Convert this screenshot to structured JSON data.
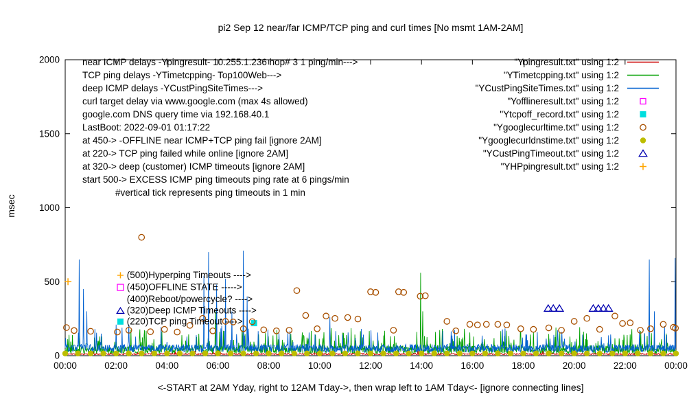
{
  "title": "pi2 Sep 12  near/far ICMP/TCP ping and curl times [No msmt 1AM-2AM]",
  "ylabel": "msec",
  "xlabel": "<-START at 2AM Yday, right to 12AM Tday->, then wrap left to 1AM Tday<- [ignore connecting lines]",
  "annotations": [
    {
      "text": "near ICMP delays -Ypingresult- 10.255.1.236 hop# 3 1 ping/min--->",
      "indent": 0
    },
    {
      "text": "TCP ping delays -YTimetcpping- Top100Web--->",
      "indent": 0
    },
    {
      "text": "deep ICMP delays -YCustPingSiteTimes--->",
      "indent": 0
    },
    {
      "text": "curl target delay via www.google.com (max 4s allowed)",
      "indent": 0
    },
    {
      "text": "google.com DNS query time via 192.168.40.1",
      "indent": 0
    },
    {
      "text": "LastBoot: 2022-09-01 01:17:22",
      "indent": 0
    },
    {
      "text": "at 450-> -OFFLINE near ICMP+TCP ping fail [ignore 2AM]",
      "indent": 0
    },
    {
      "text": "at 220-> TCP ping failed while online [ignore 2AM]",
      "indent": 0
    },
    {
      "text": "at 320-> deep (customer) ICMP timeouts [ignore 2AM]",
      "indent": 0
    },
    {
      "text": "start 500-> EXCESS ICMP ping timeouts ping rate at 6 pings/min",
      "indent": 0
    },
    {
      "text": "#vertical tick represents ping timeouts in 1 min",
      "indent": 48
    }
  ],
  "level_labels": [
    {
      "y_msec": 525,
      "marker": "plus",
      "color": "#ffa500",
      "text": "(500)Hyperping Timeouts ---->"
    },
    {
      "y_msec": 443,
      "marker": "square_open",
      "color": "#ff00ff",
      "text": "(450)OFFLINE STATE ----->"
    },
    {
      "y_msec": 361,
      "marker": "none",
      "color": "#000000",
      "text": "(400)Reboot/powercycle? ---->"
    },
    {
      "y_msec": 285,
      "marker": "triangle_open",
      "color": "#0000b0",
      "text": "(320)Deep ICMP Timeouts ---->"
    },
    {
      "y_msec": 212,
      "marker": "square_filled",
      "color": "#00dede",
      "text": "(220)TCP ping Timeout ---->"
    }
  ],
  "chart_data": {
    "type": "line",
    "xlim": [
      0,
      24
    ],
    "ylim": [
      0,
      2000
    ],
    "x_tick_hours": [
      0,
      2,
      4,
      6,
      8,
      10,
      12,
      14,
      16,
      18,
      20,
      22,
      24
    ],
    "x_tick_labels": [
      "00:00",
      "02:00",
      "04:00",
      "06:00",
      "08:00",
      "10:00",
      "12:00",
      "14:00",
      "16:00",
      "18:00",
      "20:00",
      "22:00",
      "00:00"
    ],
    "y_ticks": [
      "0",
      "500",
      "1000",
      "1500",
      "2000"
    ],
    "y_tick_values": [
      0,
      500,
      1000,
      1500,
      2000
    ],
    "legend_position": "top-right",
    "grid": false,
    "series": [
      {
        "name": "Ypingresult",
        "label": "\"Ypingresult.txt\" using 1:2",
        "kind": "noisy_line",
        "color": "#cc0000",
        "seed": 11,
        "base": 6,
        "amp": 10,
        "spike_prob": 0.015,
        "spike_amp": 25,
        "spikes": []
      },
      {
        "name": "YTimetcpping",
        "label": "\"YTimetcpping.txt\" using 1:2",
        "kind": "noisy_line",
        "color": "#00a000",
        "seed": 22,
        "base": 12,
        "amp": 55,
        "spike_prob": 0.16,
        "spike_amp": 130,
        "spikes": [
          [
            5.9,
            300
          ],
          [
            13.97,
            560
          ],
          [
            14.05,
            300
          ]
        ]
      },
      {
        "name": "YCustPingSiteTimes",
        "label": "\"YCustPingSiteTimes.txt\" using 1:2",
        "kind": "noisy_line",
        "color": "#0060d0",
        "seed": 33,
        "base": 22,
        "amp": 55,
        "spike_prob": 0.06,
        "spike_amp": 140,
        "spikes": [
          [
            0.55,
            650
          ],
          [
            0.72,
            450
          ],
          [
            0.85,
            300
          ],
          [
            2.0,
            210
          ],
          [
            5.45,
            540
          ],
          [
            5.63,
            700
          ],
          [
            5.95,
            480
          ],
          [
            6.3,
            520
          ],
          [
            6.55,
            300
          ],
          [
            7.0,
            710
          ],
          [
            7.15,
            400
          ],
          [
            10.4,
            260
          ],
          [
            22.95,
            650
          ],
          [
            23.15,
            300
          ],
          [
            23.55,
            200
          ],
          [
            23.97,
            660
          ]
        ]
      },
      {
        "name": "Yofflineresult",
        "label": "\"Yofflineresult.txt\" using 1:2",
        "kind": "scatter",
        "marker": "square_open",
        "color": "#ff00ff",
        "size": 4,
        "points": []
      },
      {
        "name": "Ytcpoff_record",
        "label": "\"Ytcpoff_record.txt\" using 1:2",
        "kind": "scatter",
        "marker": "square_filled",
        "color": "#00dede",
        "size": 4.5,
        "points": [
          [
            7.42,
            220
          ]
        ]
      },
      {
        "name": "Ygooglecurltime",
        "label": "\"Ygooglecurltime.txt\" using 1:2",
        "kind": "scatter",
        "marker": "circle_open",
        "color": "#a85000",
        "size": 4.2,
        "points": [
          [
            0.05,
            190
          ],
          [
            0.35,
            170
          ],
          [
            1.0,
            165
          ],
          [
            2.05,
            160
          ],
          [
            2.5,
            172
          ],
          [
            3.0,
            800
          ],
          [
            3.35,
            162
          ],
          [
            3.9,
            178
          ],
          [
            4.4,
            160
          ],
          [
            4.9,
            205
          ],
          [
            5.4,
            252
          ],
          [
            5.8,
            168
          ],
          [
            6.3,
            232
          ],
          [
            6.6,
            228
          ],
          [
            7.0,
            182
          ],
          [
            7.35,
            230
          ],
          [
            7.8,
            175
          ],
          [
            8.3,
            168
          ],
          [
            8.8,
            172
          ],
          [
            9.1,
            440
          ],
          [
            9.45,
            272
          ],
          [
            9.9,
            182
          ],
          [
            10.25,
            268
          ],
          [
            10.6,
            252
          ],
          [
            11.1,
            258
          ],
          [
            11.5,
            248
          ],
          [
            12.0,
            432
          ],
          [
            12.2,
            428
          ],
          [
            12.9,
            172
          ],
          [
            13.1,
            432
          ],
          [
            13.3,
            428
          ],
          [
            13.95,
            402
          ],
          [
            14.15,
            405
          ],
          [
            15.0,
            232
          ],
          [
            15.35,
            168
          ],
          [
            15.9,
            212
          ],
          [
            16.2,
            208
          ],
          [
            16.55,
            212
          ],
          [
            17.0,
            212
          ],
          [
            17.35,
            208
          ],
          [
            17.9,
            182
          ],
          [
            18.4,
            178
          ],
          [
            19.0,
            188
          ],
          [
            19.5,
            172
          ],
          [
            20.0,
            232
          ],
          [
            20.5,
            252
          ],
          [
            21.0,
            178
          ],
          [
            21.6,
            268
          ],
          [
            21.9,
            218
          ],
          [
            22.2,
            222
          ],
          [
            22.6,
            172
          ],
          [
            23.0,
            182
          ],
          [
            23.5,
            212
          ],
          [
            23.9,
            192
          ],
          [
            23.98,
            186
          ]
        ]
      },
      {
        "name": "Ygooglecurldnstime",
        "label": "\"Ygooglecurldnstime.txt\" using 1:2",
        "kind": "scatter",
        "marker": "circle_filled",
        "color": "#bdbd00",
        "size": 4.2,
        "points_rule": {
          "start": 0,
          "end": 24,
          "step": 0.5,
          "y": 15
        }
      },
      {
        "name": "YCustPingTimeout",
        "label": "\"YCustPingTimeout.txt\" using 1:2",
        "kind": "scatter",
        "marker": "triangle_open",
        "color": "#0000b0",
        "size": 5,
        "points": [
          [
            18.98,
            320
          ],
          [
            19.18,
            320
          ],
          [
            19.42,
            320
          ],
          [
            20.75,
            320
          ],
          [
            20.95,
            320
          ],
          [
            21.15,
            320
          ],
          [
            21.35,
            320
          ]
        ]
      },
      {
        "name": "YHPpingresult",
        "label": "\"YHPpingresult.txt\" using 1:2",
        "kind": "scatter",
        "marker": "plus",
        "color": "#ffa500",
        "size": 5,
        "points": [
          [
            0.11,
            500
          ]
        ]
      }
    ]
  }
}
